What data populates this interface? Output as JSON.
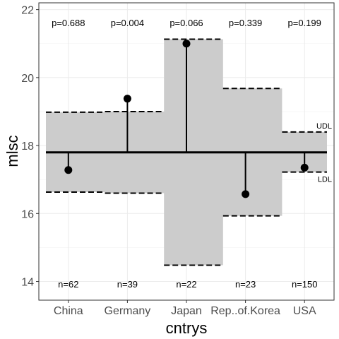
{
  "chart_data": {
    "type": "scatter",
    "xlabel": "cntrys",
    "ylabel": "mlsc",
    "ylim": [
      13.45,
      22.2
    ],
    "yticks": [
      14,
      16,
      18,
      20,
      22
    ],
    "grid": true,
    "center_line": 17.8,
    "categories": [
      "China",
      "Germany",
      "Japan",
      "Rep..of.Korea",
      "USA"
    ],
    "points": [
      17.28,
      19.38,
      21.0,
      16.57,
      17.35
    ],
    "udl": [
      18.98,
      19.0,
      21.13,
      19.68,
      18.4
    ],
    "ldl": [
      16.63,
      16.6,
      14.48,
      15.93,
      17.22
    ],
    "p_values": [
      "p=0.688",
      "p=0.004",
      "p=0.066",
      "p=0.339",
      "p=0.199"
    ],
    "n_labels": [
      "n=62",
      "n=39",
      "n=22",
      "n=23",
      "n=150"
    ],
    "band_labels": {
      "upper": "UDL",
      "lower": "LDL"
    }
  }
}
